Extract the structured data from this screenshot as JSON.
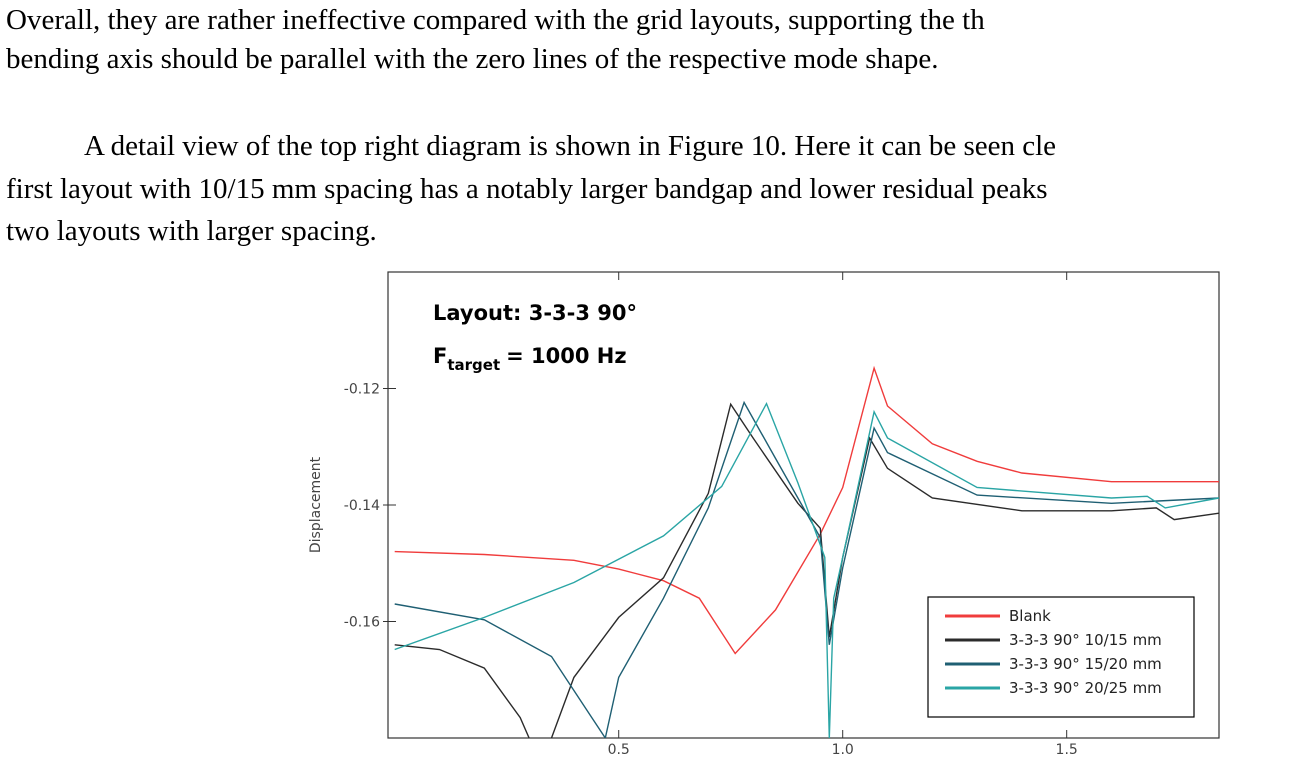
{
  "text": {
    "lines": [
      "Overall, they are rather ineffective compared with the grid layouts, supporting the th",
      "bending axis should be parallel with the zero lines of the respective mode shape.",
      "A detail view of the top right diagram is shown in Figure 10. Here it can be seen cle",
      "first layout with 10/15 mm spacing has a notably larger bandgap and lower residual peaks",
      "two layouts with larger spacing."
    ]
  },
  "chart_data": {
    "type": "line",
    "annotation": {
      "line1": "Layout: 3-3-3 90°",
      "symbol": "F",
      "subscript": "target",
      "rest": "= 1000 Hz"
    },
    "ylabel": "Displacement",
    "xlim": [
      -0.015,
      1.84
    ],
    "ylim": [
      -0.18,
      -0.1
    ],
    "xticks": [
      0.5,
      {
        "value": 1,
        "label": "1.0"
      },
      1.5
    ],
    "yticks": [
      -0.16,
      -0.14,
      -0.12
    ],
    "legend": "lower right",
    "series": [
      {
        "name": "Blank",
        "color": "#f03c3c",
        "x": [
          0,
          0.2,
          0.4,
          0.5,
          0.6,
          0.68,
          0.76,
          0.85,
          0.95,
          1.0,
          1.07,
          1.1,
          1.2,
          1.3,
          1.4,
          1.6,
          1.84
        ],
        "values": [
          -0.148,
          -0.1485,
          -0.1495,
          -0.151,
          -0.153,
          -0.156,
          -0.1655,
          -0.158,
          -0.145,
          -0.137,
          -0.1165,
          -0.123,
          -0.1295,
          -0.1325,
          -0.1345,
          -0.136,
          -0.136
        ]
      },
      {
        "name": "3-3-3 90° 10/15 mm",
        "color": "#2b2b2b",
        "x": [
          0,
          0.1,
          0.2,
          0.28,
          0.3,
          0.32,
          0.35,
          0.4,
          0.5,
          0.6,
          0.7,
          0.75,
          0.8,
          0.9,
          0.95,
          0.97,
          1.0,
          1.06,
          1.1,
          1.2,
          1.4,
          1.6,
          1.7,
          1.74,
          1.84
        ],
        "values": [
          -0.164,
          -0.1648,
          -0.168,
          -0.1765,
          -0.18,
          null,
          -0.18,
          -0.1696,
          -0.1593,
          -0.1525,
          -0.138,
          -0.1227,
          -0.1285,
          -0.1397,
          -0.144,
          -0.1627,
          -0.149,
          -0.1285,
          -0.1337,
          -0.1388,
          -0.141,
          -0.141,
          -0.1405,
          -0.1425,
          -0.1414
        ]
      },
      {
        "name": "3-3-3 90° 15/20 mm",
        "color": "#1f5f73",
        "x": [
          0,
          0.2,
          0.35,
          0.44,
          0.47,
          0.5,
          0.6,
          0.7,
          0.78,
          0.85,
          0.95,
          0.97,
          1.0,
          1.07,
          1.1,
          1.3,
          1.6,
          1.84
        ],
        "values": [
          -0.157,
          -0.1597,
          -0.166,
          -0.1765,
          -0.18,
          -0.1696,
          -0.156,
          -0.1405,
          -0.1224,
          -0.132,
          -0.1456,
          -0.164,
          -0.1508,
          -0.1268,
          -0.131,
          -0.1383,
          -0.1397,
          -0.1388
        ]
      },
      {
        "name": "3-3-3 90° 20/25 mm",
        "color": "#2aa5a5",
        "x": [
          0,
          0.2,
          0.4,
          0.6,
          0.73,
          0.83,
          0.9,
          0.96,
          0.97,
          0.98,
          1.0,
          1.07,
          1.1,
          1.3,
          1.6,
          1.68,
          1.72,
          1.84
        ],
        "values": [
          -0.1648,
          -0.1593,
          -0.1533,
          -0.1453,
          -0.1368,
          -0.1226,
          -0.1362,
          -0.149,
          -0.18,
          -0.156,
          -0.149,
          -0.124,
          -0.1285,
          -0.137,
          -0.1388,
          -0.1385,
          -0.1405,
          -0.1388
        ]
      }
    ]
  }
}
